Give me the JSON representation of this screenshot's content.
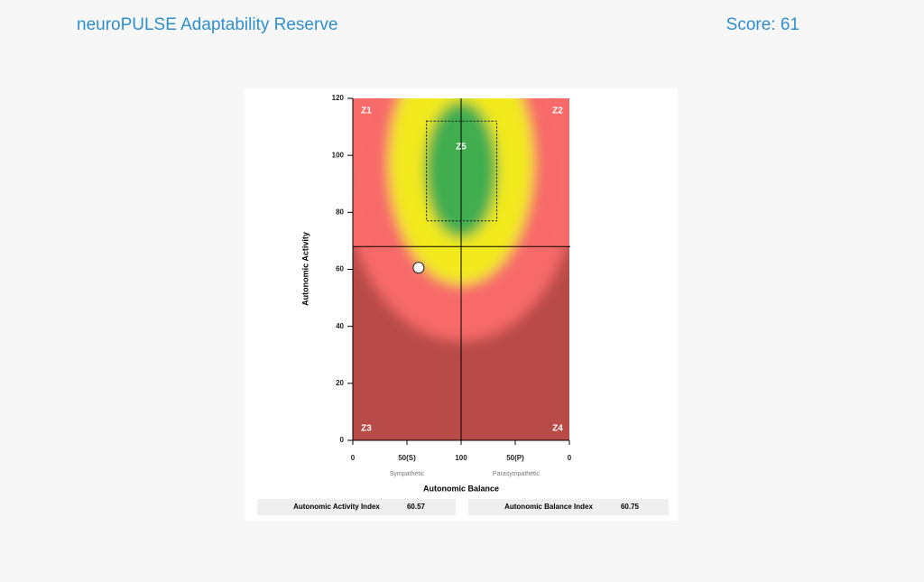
{
  "header": {
    "title": "neuroPULSE Adaptability Reserve",
    "score": "Score: 61"
  },
  "chart_data": {
    "type": "scatter",
    "x_label": "Autonomic Balance",
    "y_label": "Autonomic Activity",
    "x": [
      60.75
    ],
    "values": [
      60.57
    ],
    "color": "#ffffff",
    "xlim": [
      0,
      200
    ],
    "xticks": [
      0,
      {
        "value": 50,
        "label": "50(S)"
      },
      100,
      {
        "value": 150,
        "label": "50(P)"
      },
      {
        "value": 200,
        "label": "0"
      }
    ],
    "ylim": [
      0,
      120
    ],
    "yticks": [
      0,
      20,
      40,
      60,
      80,
      100,
      120
    ],
    "reference_lines": {
      "x": 100,
      "y": 68
    },
    "target_zone": {
      "x": [
        68,
        133
      ],
      "y": [
        77,
        112
      ]
    },
    "annotations": [
      "Z1",
      "Z2",
      "Z3",
      "Z4",
      "Z5"
    ],
    "x_side_labels": [
      "Sympathetic",
      "Parasympathetic"
    ]
  },
  "indices": [
    "Autonomic Activity Index",
    "Autonomic Balance Index"
  ]
}
